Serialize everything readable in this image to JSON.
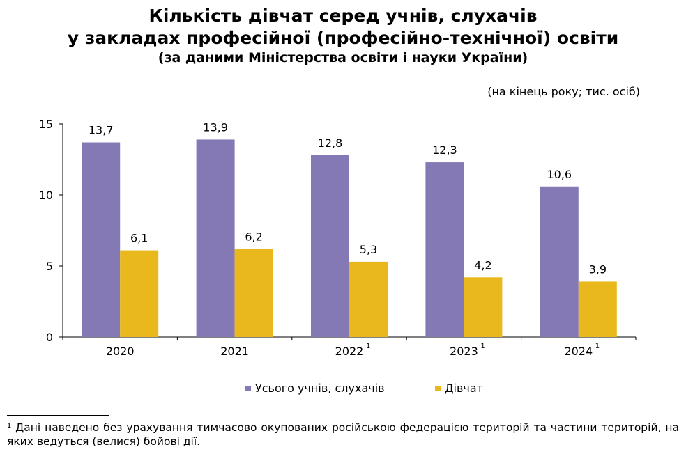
{
  "title": {
    "line1": "Кількість дівчат серед учнів, слухачів",
    "line2": "у закладах професійної (професійно-технічної) освіти",
    "line3": "(за даними Міністерства освіти і науки України)"
  },
  "units": "(на кінець року; тис. осіб)",
  "colors": {
    "total": "#8579b5",
    "girls": "#e9b81c",
    "axis": "#000000"
  },
  "chart_data": {
    "type": "bar",
    "categories": [
      "2020",
      "2021",
      "2022",
      "2023",
      "2024"
    ],
    "category_superscripts": [
      "",
      "",
      "1",
      "1",
      "1"
    ],
    "series": [
      {
        "name": "Усього учнів, слухачів",
        "values": [
          13.7,
          13.9,
          12.8,
          12.3,
          10.6
        ],
        "labels": [
          "13,7",
          "13,9",
          "12,8",
          "12,3",
          "10,6"
        ]
      },
      {
        "name": "Дівчат",
        "values": [
          6.1,
          6.2,
          5.3,
          4.2,
          3.9
        ],
        "labels": [
          "6,1",
          "6,2",
          "5,3",
          "4,2",
          "3,9"
        ]
      }
    ],
    "ylim": [
      0,
      15
    ],
    "yticks": [
      0,
      5,
      10,
      15
    ],
    "grid": false,
    "legend": "bottom"
  },
  "footnote": "¹ Дані наведено без урахування тимчасово окупованих російською федерацією територій та частини територій, на яких ведуться (велися) бойові дії."
}
